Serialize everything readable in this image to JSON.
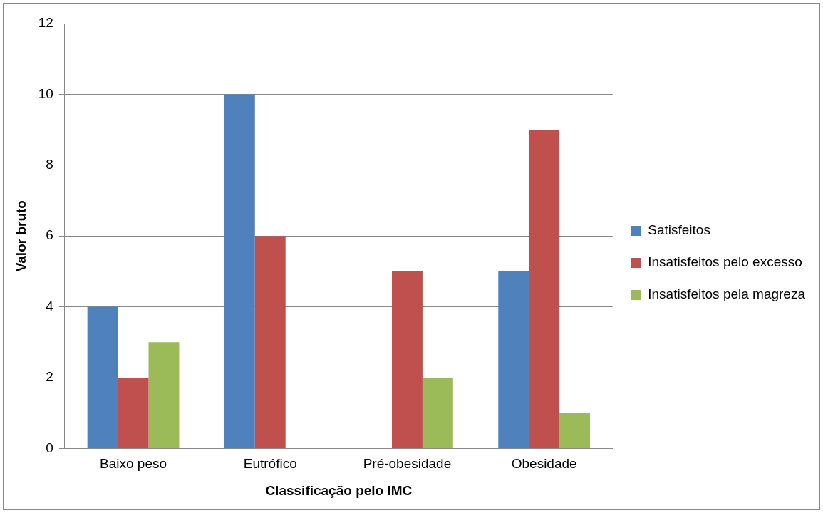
{
  "chart_data": {
    "type": "bar",
    "xlabel": "Classificação pelo IMC",
    "ylabel": "Valor bruto",
    "categories": [
      "Baixo peso",
      "Eutrófico",
      "Pré-obesidade",
      "Obesidade"
    ],
    "series": [
      {
        "name": "Satisfeitos",
        "color": "#4f81bd",
        "values": [
          4,
          10,
          0,
          5
        ]
      },
      {
        "name": "Insatisfeitos pelo excesso",
        "color": "#c0504d",
        "values": [
          2,
          6,
          5,
          9
        ]
      },
      {
        "name": "Insatisfeitos pela magreza",
        "color": "#9bbb59",
        "values": [
          3,
          0,
          2,
          1
        ]
      }
    ],
    "ylim": [
      0,
      12
    ],
    "yticks": [
      0,
      2,
      4,
      6,
      8,
      10,
      12
    ],
    "grid": "y",
    "legend": "right"
  }
}
